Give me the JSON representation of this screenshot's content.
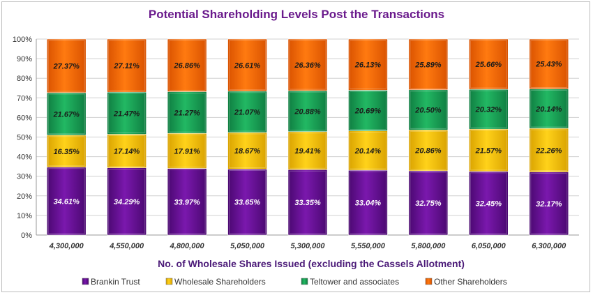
{
  "chart_data": {
    "type": "bar",
    "stacked": true,
    "percent": true,
    "title": "Potential Shareholding Levels Post the Transactions",
    "xlabel": "No. of Wholesale Shares Issued (excluding the Cassels Allotment)",
    "ylabel": "",
    "ylim": [
      0,
      100
    ],
    "yticks": [
      "0%",
      "10%",
      "20%",
      "30%",
      "40%",
      "50%",
      "60%",
      "70%",
      "80%",
      "90%",
      "100%"
    ],
    "categories": [
      "4,300,000",
      "4,550,000",
      "4,800,000",
      "5,050,000",
      "5,300,000",
      "5,550,000",
      "5,800,000",
      "6,050,000",
      "6,300,000"
    ],
    "grid": true,
    "legend": "bottom",
    "series": [
      {
        "name": "Brankin Trust",
        "color": "#6a0d9a",
        "values": [
          34.61,
          34.29,
          33.97,
          33.65,
          33.35,
          33.04,
          32.75,
          32.45,
          32.17
        ],
        "labels": [
          "34.61%",
          "34.29%",
          "33.97%",
          "33.65%",
          "33.35%",
          "33.04%",
          "32.75%",
          "32.45%",
          "32.17%"
        ]
      },
      {
        "name": "Wholesale Shareholders",
        "color": "#ffc800",
        "values": [
          16.35,
          17.14,
          17.91,
          18.67,
          19.41,
          20.14,
          20.86,
          21.57,
          22.26
        ],
        "labels": [
          "16.35%",
          "17.14%",
          "17.91%",
          "18.67%",
          "19.41%",
          "20.14%",
          "20.86%",
          "21.57%",
          "22.26%"
        ]
      },
      {
        "name": "Teltower and associates",
        "color": "#19a356",
        "values": [
          21.67,
          21.47,
          21.27,
          21.07,
          20.88,
          20.69,
          20.5,
          20.32,
          20.14
        ],
        "labels": [
          "21.67%",
          "21.47%",
          "21.27%",
          "21.07%",
          "20.88%",
          "20.69%",
          "20.50%",
          "20.32%",
          "20.14%"
        ]
      },
      {
        "name": "Other Shareholders",
        "color": "#ff6a00",
        "values": [
          27.37,
          27.11,
          26.86,
          26.61,
          26.36,
          26.13,
          25.89,
          25.66,
          25.43
        ],
        "labels": [
          "27.37%",
          "27.11%",
          "26.86%",
          "26.61%",
          "26.36%",
          "26.13%",
          "25.89%",
          "25.66%",
          "25.43%"
        ]
      }
    ]
  }
}
